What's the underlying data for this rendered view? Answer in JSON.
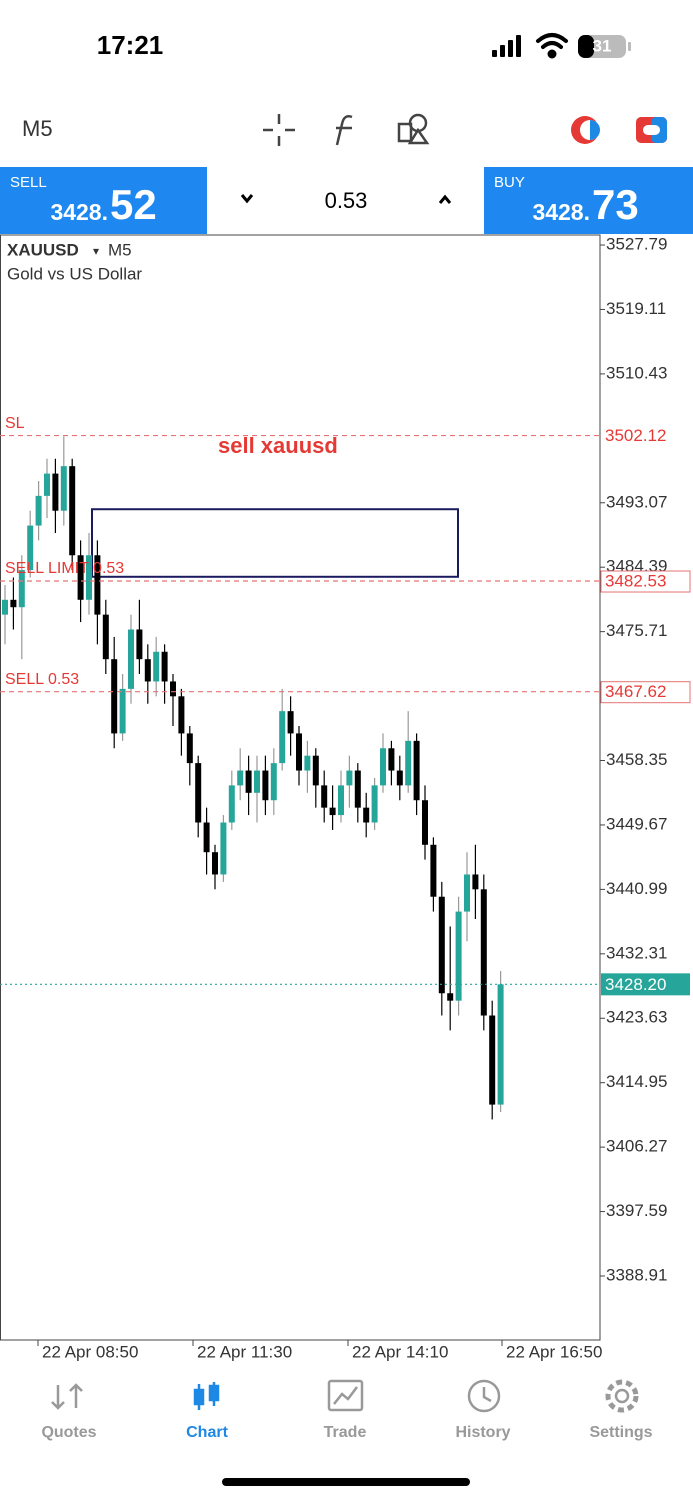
{
  "status_bar": {
    "time": "17:21",
    "battery": "31"
  },
  "toolbar": {
    "timeframe": "M5"
  },
  "trade_panel": {
    "sell": {
      "label": "SELL",
      "price_main": "3428.",
      "price_big": "52"
    },
    "volume": "0.53",
    "buy": {
      "label": "BUY",
      "price_main": "3428.",
      "price_big": "73"
    }
  },
  "chart_data": {
    "type": "candlestick",
    "symbol": "XAUUSD",
    "timeframe": "M5",
    "description": "Gold vs US Dollar",
    "up_color": "#26a69a",
    "down_color": "#000000",
    "ylim": [
      3380.29,
      3529.14
    ],
    "yticks": [
      3527.79,
      3519.11,
      3510.43,
      3493.07,
      3484.39,
      3475.71,
      3458.35,
      3449.67,
      3440.99,
      3432.31,
      3423.63,
      3414.95,
      3406.27,
      3397.59,
      3388.91
    ],
    "x_labels": [
      "22 Apr 08:50",
      "22 Apr 11:30",
      "22 Apr 14:10",
      "22 Apr 16:50"
    ],
    "ohlc": [
      [
        3478,
        3482,
        3474,
        3480
      ],
      [
        3480,
        3483,
        3476,
        3479
      ],
      [
        3479,
        3486,
        3472,
        3484
      ],
      [
        3484,
        3492,
        3483,
        3490
      ],
      [
        3490,
        3496,
        3488,
        3494
      ],
      [
        3494,
        3499,
        3491,
        3497
      ],
      [
        3497,
        3499,
        3489,
        3492
      ],
      [
        3492,
        3502,
        3490,
        3498
      ],
      [
        3498,
        3499,
        3484,
        3486
      ],
      [
        3486,
        3488,
        3477,
        3480
      ],
      [
        3480,
        3489,
        3478,
        3486
      ],
      [
        3486,
        3488,
        3474,
        3478
      ],
      [
        3478,
        3480,
        3470,
        3472
      ],
      [
        3472,
        3475,
        3460,
        3462
      ],
      [
        3462,
        3470,
        3461,
        3468
      ],
      [
        3468,
        3478,
        3466,
        3476
      ],
      [
        3476,
        3480,
        3470,
        3472
      ],
      [
        3472,
        3474,
        3466,
        3469
      ],
      [
        3469,
        3475,
        3467,
        3473
      ],
      [
        3473,
        3474,
        3466,
        3469
      ],
      [
        3469,
        3470,
        3463,
        3467
      ],
      [
        3467,
        3468,
        3459,
        3462
      ],
      [
        3462,
        3463,
        3455,
        3458
      ],
      [
        3458,
        3459,
        3448,
        3450
      ],
      [
        3450,
        3452,
        3443,
        3446
      ],
      [
        3446,
        3447,
        3441,
        3443
      ],
      [
        3443,
        3451,
        3442,
        3450
      ],
      [
        3450,
        3457,
        3449,
        3455
      ],
      [
        3455,
        3460,
        3453,
        3457
      ],
      [
        3457,
        3459,
        3451,
        3454
      ],
      [
        3454,
        3459,
        3450,
        3457
      ],
      [
        3457,
        3459,
        3451,
        3453
      ],
      [
        3453,
        3460,
        3451,
        3458
      ],
      [
        3458,
        3468,
        3457,
        3465
      ],
      [
        3465,
        3467,
        3459,
        3462
      ],
      [
        3462,
        3463,
        3455,
        3457
      ],
      [
        3457,
        3461,
        3454,
        3459
      ],
      [
        3459,
        3460,
        3452,
        3455
      ],
      [
        3455,
        3457,
        3450,
        3452
      ],
      [
        3452,
        3455,
        3449,
        3451
      ],
      [
        3451,
        3457,
        3450,
        3455
      ],
      [
        3455,
        3459,
        3452,
        3457
      ],
      [
        3457,
        3458,
        3450,
        3452
      ],
      [
        3452,
        3454,
        3448,
        3450
      ],
      [
        3450,
        3456,
        3449,
        3455
      ],
      [
        3455,
        3462,
        3454,
        3460
      ],
      [
        3460,
        3461,
        3455,
        3457
      ],
      [
        3457,
        3459,
        3453,
        3455
      ],
      [
        3455,
        3465,
        3454,
        3461
      ],
      [
        3461,
        3462,
        3451,
        3453
      ],
      [
        3453,
        3455,
        3445,
        3447
      ],
      [
        3447,
        3448,
        3438,
        3440
      ],
      [
        3440,
        3442,
        3424,
        3427
      ],
      [
        3427,
        3436,
        3422,
        3426
      ],
      [
        3426,
        3440,
        3424,
        3438
      ],
      [
        3438,
        3446,
        3434,
        3443
      ],
      [
        3443,
        3447,
        3437,
        3441
      ],
      [
        3441,
        3443,
        3422,
        3424
      ],
      [
        3424,
        3426,
        3410,
        3412
      ],
      [
        3412,
        3430,
        3411,
        3428.2
      ]
    ],
    "levels": [
      {
        "name": "SL",
        "value": 3502.12
      },
      {
        "name": "SELL LIMIT 0.53",
        "value": 3482.53
      },
      {
        "name": "SELL 0.53",
        "value": 3467.62
      }
    ],
    "current_price": {
      "value": 3428.2,
      "label": "3428.20"
    },
    "annotation": "sell xauusd",
    "rectangle": {
      "top": 3492.2,
      "bottom": 3483.1
    }
  },
  "tab_bar": {
    "tabs": [
      "Quotes",
      "Chart",
      "Trade",
      "History",
      "Settings"
    ],
    "active": 1
  }
}
